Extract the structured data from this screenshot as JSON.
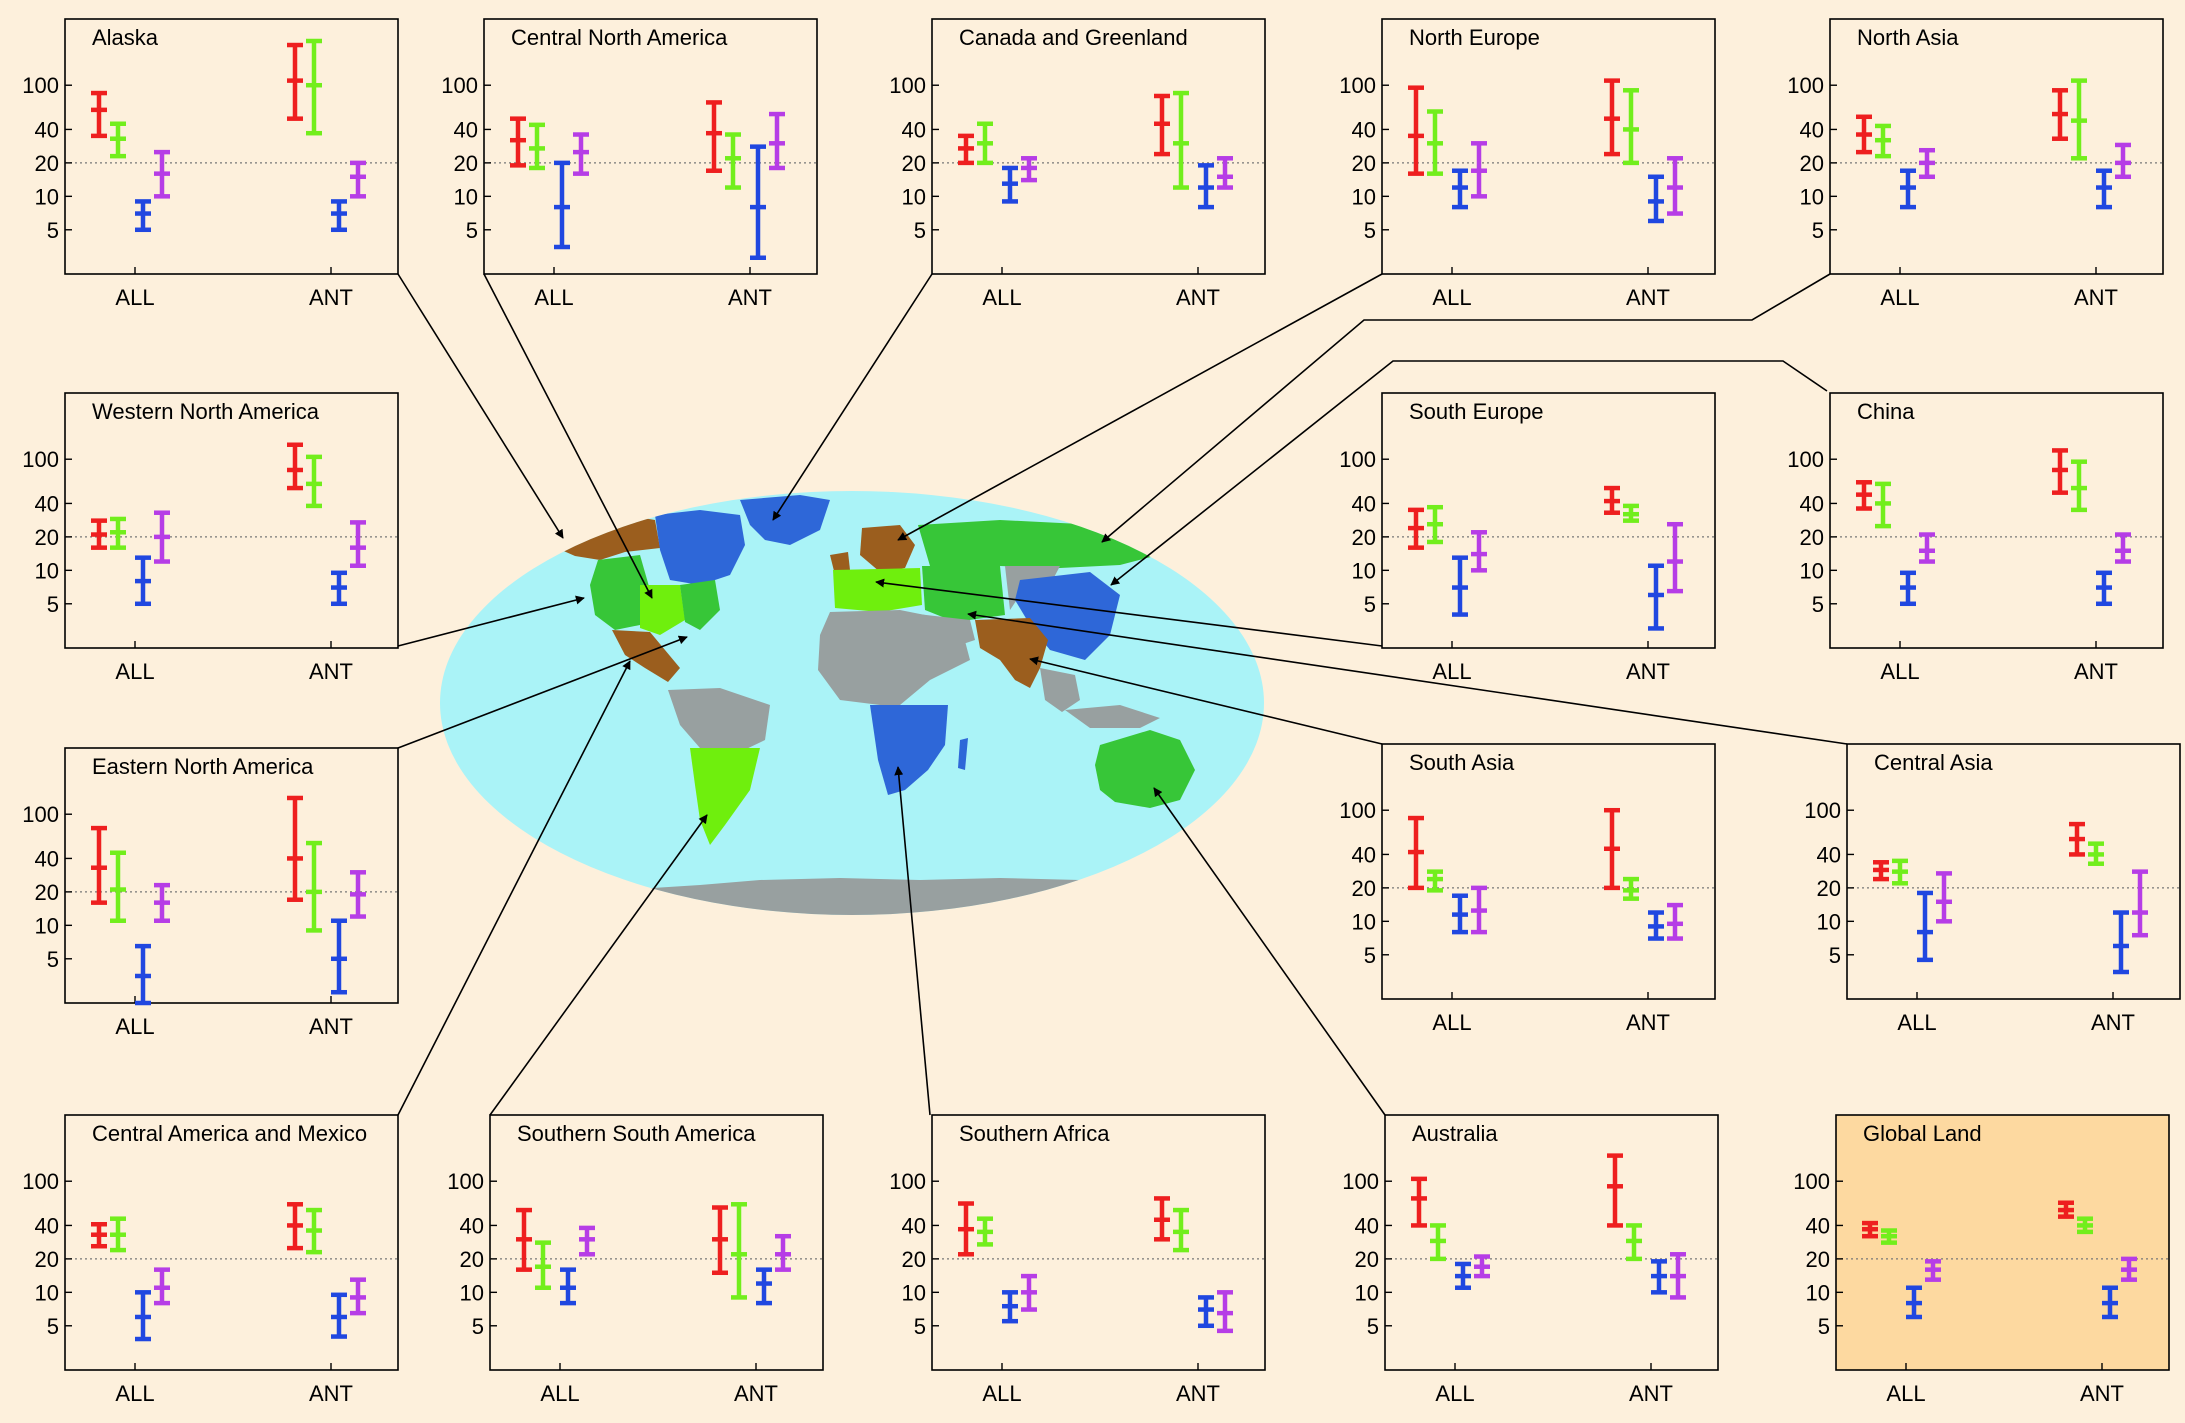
{
  "colors": {
    "background": "#fdf0dc",
    "highlight_panel": "#fdd9a0",
    "ocean": "#aaf3f7",
    "gray_land": "#98a0a0",
    "brown_region": "#9b5e1e",
    "green_region": "#37c638",
    "lime_region": "#6fef0d",
    "blue_region": "#2e67d8",
    "bar_red": "#ee1f1f",
    "bar_green": "#72ee1c",
    "bar_blue": "#2047e0",
    "bar_purple": "#b63de6"
  },
  "axis": {
    "scale": "log",
    "ylim": [
      2,
      250
    ],
    "ytick_labels": [
      "100",
      "40",
      "20",
      "10",
      "5"
    ],
    "reference_line": 20,
    "groups": [
      "ALL",
      "ANT"
    ]
  },
  "chart_data": [
    {
      "type": "errorbar",
      "title": "Alaska",
      "categories": [
        "ALL",
        "ANT"
      ],
      "series": [
        {
          "color": "bar_red",
          "values": [
            [
              35,
              60,
              85
            ],
            [
              50,
              110,
              230
            ]
          ]
        },
        {
          "color": "bar_green",
          "values": [
            [
              23,
              33,
              45
            ],
            [
              37,
              100,
              250
            ]
          ]
        },
        {
          "color": "bar_blue",
          "values": [
            [
              5,
              7,
              9
            ],
            [
              5,
              7,
              9
            ]
          ]
        },
        {
          "color": "bar_purple",
          "values": [
            [
              10,
              16,
              25
            ],
            [
              10,
              15,
              20
            ]
          ]
        }
      ]
    },
    {
      "type": "errorbar",
      "title": "Central North America",
      "categories": [
        "ALL",
        "ANT"
      ],
      "series": [
        {
          "color": "bar_red",
          "values": [
            [
              19,
              32,
              50
            ],
            [
              17,
              37,
              70
            ]
          ]
        },
        {
          "color": "bar_green",
          "values": [
            [
              18,
              27,
              44
            ],
            [
              12,
              22,
              36
            ]
          ]
        },
        {
          "color": "bar_blue",
          "values": [
            [
              3.5,
              8,
              20
            ],
            [
              2.8,
              8,
              28
            ]
          ]
        },
        {
          "color": "bar_purple",
          "values": [
            [
              16,
              25,
              36
            ],
            [
              18,
              30,
              55
            ]
          ]
        }
      ]
    },
    {
      "type": "errorbar",
      "title": "Canada and Greenland",
      "categories": [
        "ALL",
        "ANT"
      ],
      "series": [
        {
          "color": "bar_red",
          "values": [
            [
              20,
              27,
              35
            ],
            [
              24,
              45,
              80
            ]
          ]
        },
        {
          "color": "bar_green",
          "values": [
            [
              20,
              30,
              45
            ],
            [
              12,
              30,
              85
            ]
          ]
        },
        {
          "color": "bar_blue",
          "values": [
            [
              9,
              13,
              18
            ],
            [
              8,
              12,
              19
            ]
          ]
        },
        {
          "color": "bar_purple",
          "values": [
            [
              14,
              18,
              22
            ],
            [
              12,
              15,
              22
            ]
          ]
        }
      ]
    },
    {
      "type": "errorbar",
      "title": "North Europe",
      "categories": [
        "ALL",
        "ANT"
      ],
      "series": [
        {
          "color": "bar_red",
          "values": [
            [
              16,
              35,
              95
            ],
            [
              24,
              50,
              110
            ]
          ]
        },
        {
          "color": "bar_green",
          "values": [
            [
              16,
              30,
              58
            ],
            [
              20,
              40,
              90
            ]
          ]
        },
        {
          "color": "bar_blue",
          "values": [
            [
              8,
              12,
              17
            ],
            [
              6,
              9,
              15
            ]
          ]
        },
        {
          "color": "bar_purple",
          "values": [
            [
              10,
              17,
              30
            ],
            [
              7,
              12,
              22
            ]
          ]
        }
      ]
    },
    {
      "type": "errorbar",
      "title": "North Asia",
      "categories": [
        "ALL",
        "ANT"
      ],
      "series": [
        {
          "color": "bar_red",
          "values": [
            [
              25,
              36,
              52
            ],
            [
              33,
              55,
              90
            ]
          ]
        },
        {
          "color": "bar_green",
          "values": [
            [
              23,
              32,
              43
            ],
            [
              22,
              48,
              110
            ]
          ]
        },
        {
          "color": "bar_blue",
          "values": [
            [
              8,
              12,
              17
            ],
            [
              8,
              12,
              17
            ]
          ]
        },
        {
          "color": "bar_purple",
          "values": [
            [
              15,
              20,
              26
            ],
            [
              15,
              20,
              29
            ]
          ]
        }
      ]
    },
    {
      "type": "errorbar",
      "title": "Western North America",
      "categories": [
        "ALL",
        "ANT"
      ],
      "series": [
        {
          "color": "bar_red",
          "values": [
            [
              16,
              21,
              28
            ],
            [
              55,
              80,
              135
            ]
          ]
        },
        {
          "color": "bar_green",
          "values": [
            [
              16,
              22,
              29
            ],
            [
              38,
              60,
              105
            ]
          ]
        },
        {
          "color": "bar_blue",
          "values": [
            [
              5,
              8,
              13
            ],
            [
              5,
              7,
              9.5
            ]
          ]
        },
        {
          "color": "bar_purple",
          "values": [
            [
              12,
              20,
              33
            ],
            [
              11,
              16,
              27
            ]
          ]
        }
      ]
    },
    {
      "type": "errorbar",
      "title": "South Europe",
      "categories": [
        "ALL",
        "ANT"
      ],
      "series": [
        {
          "color": "bar_red",
          "values": [
            [
              16,
              24,
              35
            ],
            [
              33,
              42,
              55
            ]
          ]
        },
        {
          "color": "bar_green",
          "values": [
            [
              18,
              26,
              37
            ],
            [
              28,
              32,
              38
            ]
          ]
        },
        {
          "color": "bar_blue",
          "values": [
            [
              4,
              7,
              13
            ],
            [
              3,
              6,
              11
            ]
          ]
        },
        {
          "color": "bar_purple",
          "values": [
            [
              10,
              14,
              22
            ],
            [
              6.5,
              12,
              26
            ]
          ]
        }
      ]
    },
    {
      "type": "errorbar",
      "title": "China",
      "categories": [
        "ALL",
        "ANT"
      ],
      "series": [
        {
          "color": "bar_red",
          "values": [
            [
              36,
              48,
              62
            ],
            [
              50,
              80,
              120
            ]
          ]
        },
        {
          "color": "bar_green",
          "values": [
            [
              25,
              40,
              60
            ],
            [
              35,
              55,
              95
            ]
          ]
        },
        {
          "color": "bar_blue",
          "values": [
            [
              5,
              7,
              9.5
            ],
            [
              5,
              7,
              9.5
            ]
          ]
        },
        {
          "color": "bar_purple",
          "values": [
            [
              12,
              15,
              21
            ],
            [
              12,
              15,
              21
            ]
          ]
        }
      ]
    },
    {
      "type": "errorbar",
      "title": "Eastern North America",
      "categories": [
        "ALL",
        "ANT"
      ],
      "series": [
        {
          "color": "bar_red",
          "values": [
            [
              16,
              33,
              75
            ],
            [
              17,
              40,
              140
            ]
          ]
        },
        {
          "color": "bar_green",
          "values": [
            [
              11,
              21,
              45
            ],
            [
              9,
              20,
              55
            ]
          ]
        },
        {
          "color": "bar_blue",
          "values": [
            [
              2,
              3.5,
              6.5
            ],
            [
              2.5,
              5,
              11
            ]
          ]
        },
        {
          "color": "bar_purple",
          "values": [
            [
              11,
              16,
              23
            ],
            [
              12,
              19,
              30
            ]
          ]
        }
      ]
    },
    {
      "type": "errorbar",
      "title": "South Asia",
      "categories": [
        "ALL",
        "ANT"
      ],
      "series": [
        {
          "color": "bar_red",
          "values": [
            [
              20,
              42,
              85
            ],
            [
              20,
              45,
              100
            ]
          ]
        },
        {
          "color": "bar_green",
          "values": [
            [
              19,
              24,
              28
            ],
            [
              16,
              19,
              24
            ]
          ]
        },
        {
          "color": "bar_blue",
          "values": [
            [
              8,
              11.5,
              17
            ],
            [
              7,
              9,
              12
            ]
          ]
        },
        {
          "color": "bar_purple",
          "values": [
            [
              8,
              12.5,
              20
            ],
            [
              7,
              9.5,
              14
            ]
          ]
        }
      ]
    },
    {
      "type": "errorbar",
      "title": "Central Asia",
      "categories": [
        "ALL",
        "ANT"
      ],
      "series": [
        {
          "color": "bar_red",
          "values": [
            [
              24,
              29,
              34
            ],
            [
              40,
              55,
              75
            ]
          ]
        },
        {
          "color": "bar_green",
          "values": [
            [
              22,
              28,
              35
            ],
            [
              33,
              40,
              50
            ]
          ]
        },
        {
          "color": "bar_blue",
          "values": [
            [
              4.5,
              8,
              18
            ],
            [
              3.5,
              6,
              12
            ]
          ]
        },
        {
          "color": "bar_purple",
          "values": [
            [
              10,
              15,
              27
            ],
            [
              7.5,
              12,
              28
            ]
          ]
        }
      ]
    },
    {
      "type": "errorbar",
      "title": "Central America and Mexico",
      "categories": [
        "ALL",
        "ANT"
      ],
      "series": [
        {
          "color": "bar_red",
          "values": [
            [
              26,
              33,
              41
            ],
            [
              25,
              40,
              62
            ]
          ]
        },
        {
          "color": "bar_green",
          "values": [
            [
              24,
              33,
              46
            ],
            [
              23,
              36,
              55
            ]
          ]
        },
        {
          "color": "bar_blue",
          "values": [
            [
              3.8,
              6,
              10
            ],
            [
              4,
              6,
              9.5
            ]
          ]
        },
        {
          "color": "bar_purple",
          "values": [
            [
              8,
              11,
              16
            ],
            [
              6.5,
              9,
              13
            ]
          ]
        }
      ]
    },
    {
      "type": "errorbar",
      "title": "Southern South America",
      "categories": [
        "ALL",
        "ANT"
      ],
      "series": [
        {
          "color": "bar_red",
          "values": [
            [
              16,
              30,
              55
            ],
            [
              15,
              30,
              58
            ]
          ]
        },
        {
          "color": "bar_green",
          "values": [
            [
              11,
              17,
              28
            ],
            [
              9,
              22,
              62
            ]
          ]
        },
        {
          "color": "bar_blue",
          "values": [
            [
              8,
              11,
              16
            ],
            [
              8,
              12,
              16
            ]
          ]
        },
        {
          "color": "bar_purple",
          "values": [
            [
              22,
              30,
              38
            ],
            [
              16,
              22,
              32
            ]
          ]
        }
      ]
    },
    {
      "type": "errorbar",
      "title": "Southern Africa",
      "categories": [
        "ALL",
        "ANT"
      ],
      "series": [
        {
          "color": "bar_red",
          "values": [
            [
              22,
              37,
              63
            ],
            [
              30,
              45,
              70
            ]
          ]
        },
        {
          "color": "bar_green",
          "values": [
            [
              27,
              35,
              46
            ],
            [
              24,
              35,
              55
            ]
          ]
        },
        {
          "color": "bar_blue",
          "values": [
            [
              5.5,
              7.5,
              10
            ],
            [
              5,
              7,
              9
            ]
          ]
        },
        {
          "color": "bar_purple",
          "values": [
            [
              7,
              10,
              14
            ],
            [
              4.5,
              6.5,
              10
            ]
          ]
        }
      ]
    },
    {
      "type": "errorbar",
      "title": "Australia",
      "categories": [
        "ALL",
        "ANT"
      ],
      "series": [
        {
          "color": "bar_red",
          "values": [
            [
              40,
              70,
              105
            ],
            [
              40,
              90,
              170
            ]
          ]
        },
        {
          "color": "bar_green",
          "values": [
            [
              20,
              29,
              40
            ],
            [
              20,
              29,
              40
            ]
          ]
        },
        {
          "color": "bar_blue",
          "values": [
            [
              11,
              14,
              18
            ],
            [
              10,
              14,
              19
            ]
          ]
        },
        {
          "color": "bar_purple",
          "values": [
            [
              14,
              17,
              21
            ],
            [
              9,
              14,
              22
            ]
          ]
        }
      ]
    },
    {
      "type": "errorbar",
      "title": "Global Land",
      "categories": [
        "ALL",
        "ANT"
      ],
      "series": [
        {
          "color": "bar_red",
          "values": [
            [
              32,
              37,
              42
            ],
            [
              48,
              55,
              64
            ]
          ]
        },
        {
          "color": "bar_green",
          "values": [
            [
              28,
              32,
              36
            ],
            [
              35,
              40,
              46
            ]
          ]
        },
        {
          "color": "bar_blue",
          "values": [
            [
              6,
              8,
              11
            ],
            [
              6,
              8,
              11
            ]
          ]
        },
        {
          "color": "bar_purple",
          "values": [
            [
              13,
              16,
              19
            ],
            [
              13,
              16,
              20
            ]
          ]
        }
      ]
    }
  ]
}
